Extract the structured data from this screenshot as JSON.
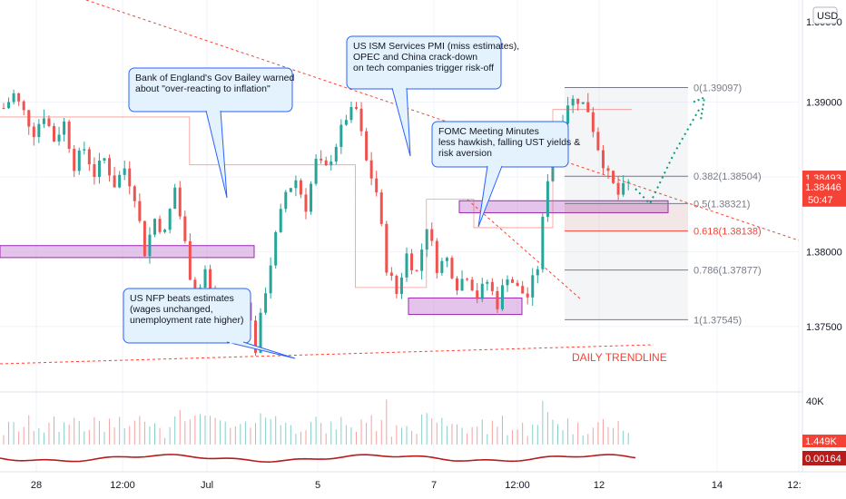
{
  "currency": "USD",
  "chart_data": {
    "type": "candlestick",
    "symbol_currency": "USD",
    "price_axis": {
      "ylim": [
        1.3715,
        1.3935
      ],
      "ticks": [
        1.375,
        1.38,
        1.385,
        1.39
      ],
      "tick_labels": [
        "1.37500",
        "1.38000",
        "1.38500",
        "1.39000"
      ],
      "top_partial_label": "1.39500"
    },
    "date_axis": {
      "labels": [
        "28",
        "12:00",
        "Jul",
        "5",
        "7",
        "12:00",
        "12",
        "14",
        "12:"
      ]
    },
    "price_badges": [
      {
        "label": "1.38493",
        "value": 1.38493,
        "color": "#f44336"
      },
      {
        "label": "1.38446",
        "value": 1.38446,
        "color": "#f44336"
      },
      {
        "label": "50:47",
        "value": null,
        "color": "#f44336"
      }
    ],
    "close_path": [
      [
        0,
        1.3896
      ],
      [
        2,
        1.3905
      ],
      [
        4,
        1.3893
      ],
      [
        6,
        1.388
      ],
      [
        8,
        1.3892
      ],
      [
        10,
        1.3875
      ],
      [
        12,
        1.3886
      ],
      [
        14,
        1.3858
      ],
      [
        16,
        1.3869
      ],
      [
        18,
        1.3852
      ],
      [
        20,
        1.3862
      ],
      [
        22,
        1.3845
      ],
      [
        24,
        1.3856
      ],
      [
        26,
        1.3838
      ],
      [
        28,
        1.38
      ],
      [
        30,
        1.3822
      ],
      [
        32,
        1.3812
      ],
      [
        34,
        1.3843
      ],
      [
        36,
        1.3805
      ],
      [
        38,
        1.3765
      ],
      [
        40,
        1.3788
      ],
      [
        42,
        1.3752
      ],
      [
        44,
        1.3762
      ],
      [
        46,
        1.3758
      ],
      [
        48,
        1.377
      ],
      [
        50,
        1.3735
      ],
      [
        52,
        1.3775
      ],
      [
        54,
        1.381
      ],
      [
        56,
        1.384
      ],
      [
        58,
        1.3848
      ],
      [
        60,
        1.383
      ],
      [
        62,
        1.386
      ],
      [
        64,
        1.3855
      ],
      [
        66,
        1.3872
      ],
      [
        68,
        1.389
      ],
      [
        70,
        1.3895
      ],
      [
        72,
        1.386
      ],
      [
        74,
        1.384
      ],
      [
        76,
        1.379
      ],
      [
        78,
        1.3772
      ],
      [
        80,
        1.3798
      ],
      [
        82,
        1.3786
      ],
      [
        84,
        1.3818
      ],
      [
        86,
        1.379
      ],
      [
        88,
        1.3795
      ],
      [
        90,
        1.3778
      ],
      [
        92,
        1.3785
      ],
      [
        94,
        1.377
      ],
      [
        96,
        1.378
      ],
      [
        98,
        1.3765
      ],
      [
        100,
        1.3785
      ],
      [
        102,
        1.3775
      ],
      [
        104,
        1.377
      ],
      [
        106,
        1.379
      ],
      [
        108,
        1.385
      ],
      [
        110,
        1.388
      ],
      [
        112,
        1.39
      ],
      [
        114,
        1.3902
      ],
      [
        116,
        1.3895
      ],
      [
        118,
        1.387
      ],
      [
        120,
        1.385
      ],
      [
        122,
        1.3838
      ],
      [
        124,
        1.3845
      ]
    ],
    "fib_levels": [
      {
        "label": "0(1.39097)",
        "ratio": 0,
        "price": 1.39097,
        "color": "#787b86"
      },
      {
        "label": "0.382(1.38504)",
        "ratio": 0.382,
        "price": 1.38504,
        "color": "#787b86"
      },
      {
        "label": "0.5(1.38321)",
        "ratio": 0.5,
        "price": 1.38321,
        "color": "#787b86"
      },
      {
        "label": "0.618(1.38138)",
        "ratio": 0.618,
        "price": 1.38138,
        "color": "#f44336"
      },
      {
        "label": "0.786(1.37877)",
        "ratio": 0.786,
        "price": 1.37877,
        "color": "#787b86"
      },
      {
        "label": "1(1.37545)",
        "ratio": 1,
        "price": 1.37545,
        "color": "#787b86"
      }
    ],
    "zones": [
      {
        "name": "support-zone-left",
        "price_low": 1.3796,
        "price_high": 1.3804
      },
      {
        "name": "support-zone-mid",
        "price_low": 1.3758,
        "price_high": 1.3769
      },
      {
        "name": "fib-zone",
        "price_low": 1.3826,
        "price_high": 1.3834
      }
    ],
    "trendline_label": "DAILY TRENDLINE",
    "indicator_panel": {
      "volume_axis_label": "40K",
      "volume_badge": "1.449K",
      "oscillator_badge": "0.00164"
    },
    "annotations": [
      {
        "id": "boe",
        "lines": [
          "Bank of England's Gov Bailey warned",
          "about \"over-reacting to inflation\""
        ]
      },
      {
        "id": "ism",
        "lines": [
          "US ISM Services PMI (miss estimates),",
          "OPEC and China crack-down",
          "on tech companies trigger risk-off"
        ]
      },
      {
        "id": "fomc",
        "lines": [
          "FOMC Meeting Minutes",
          "less hawkish, falling UST yields &",
          "risk aversion"
        ]
      },
      {
        "id": "nfp",
        "lines": [
          "US NFP beats estimates",
          "(wages unchanged,",
          "unemployment rate higher)"
        ]
      }
    ]
  }
}
